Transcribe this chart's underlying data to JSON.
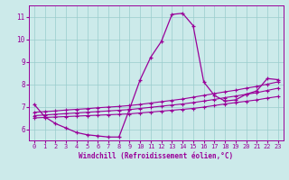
{
  "xlabel": "Windchill (Refroidissement éolien,°C)",
  "bg_color": "#cceaea",
  "line_color": "#990099",
  "grid_color": "#99cccc",
  "xlim": [
    -0.5,
    23.5
  ],
  "ylim": [
    5.5,
    11.5
  ],
  "xticks": [
    0,
    1,
    2,
    3,
    4,
    5,
    6,
    7,
    8,
    9,
    10,
    11,
    12,
    13,
    14,
    15,
    16,
    17,
    18,
    19,
    20,
    21,
    22,
    23
  ],
  "yticks": [
    6,
    7,
    8,
    9,
    10,
    11
  ],
  "line1_x": [
    0,
    1,
    2,
    3,
    4,
    5,
    6,
    7,
    8,
    9,
    10,
    11,
    12,
    13,
    14,
    15,
    16,
    17,
    18,
    19,
    20,
    21,
    22,
    23
  ],
  "line1_y": [
    7.1,
    6.55,
    6.25,
    6.05,
    5.85,
    5.75,
    5.7,
    5.65,
    5.65,
    6.9,
    8.2,
    9.2,
    9.9,
    11.1,
    11.15,
    10.6,
    8.1,
    7.5,
    7.25,
    7.3,
    7.55,
    7.7,
    8.25,
    8.2
  ],
  "line2_x": [
    0,
    1,
    2,
    3,
    4,
    5,
    6,
    7,
    8,
    9,
    10,
    11,
    12,
    13,
    14,
    15,
    16,
    17,
    18,
    19,
    20,
    21,
    22,
    23
  ],
  "line2_y": [
    6.5,
    6.52,
    6.54,
    6.56,
    6.58,
    6.6,
    6.62,
    6.64,
    6.66,
    6.68,
    6.72,
    6.76,
    6.8,
    6.84,
    6.88,
    6.92,
    6.98,
    7.05,
    7.12,
    7.18,
    7.24,
    7.3,
    7.38,
    7.45
  ],
  "line3_x": [
    0,
    1,
    2,
    3,
    4,
    5,
    6,
    7,
    8,
    9,
    10,
    11,
    12,
    13,
    14,
    15,
    16,
    17,
    18,
    19,
    20,
    21,
    22,
    23
  ],
  "line3_y": [
    6.6,
    6.63,
    6.66,
    6.69,
    6.72,
    6.75,
    6.78,
    6.81,
    6.84,
    6.87,
    6.92,
    6.97,
    7.02,
    7.07,
    7.12,
    7.18,
    7.25,
    7.32,
    7.4,
    7.47,
    7.55,
    7.62,
    7.72,
    7.82
  ],
  "line4_x": [
    0,
    1,
    2,
    3,
    4,
    5,
    6,
    7,
    8,
    9,
    10,
    11,
    12,
    13,
    14,
    15,
    16,
    17,
    18,
    19,
    20,
    21,
    22,
    23
  ],
  "line4_y": [
    6.75,
    6.78,
    6.81,
    6.85,
    6.88,
    6.91,
    6.95,
    6.98,
    7.01,
    7.05,
    7.1,
    7.16,
    7.22,
    7.28,
    7.34,
    7.42,
    7.5,
    7.58,
    7.66,
    7.73,
    7.82,
    7.9,
    8.0,
    8.1
  ]
}
